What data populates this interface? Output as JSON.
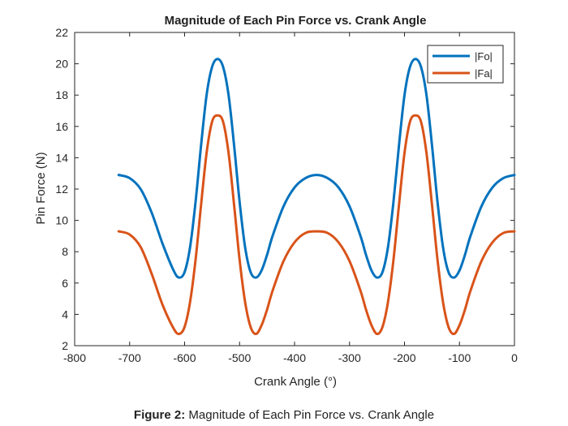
{
  "figure": {
    "caption_label": "Figure 2:",
    "caption_text": " Magnitude of Each Pin Force vs. Crank Angle"
  },
  "chart_data": {
    "type": "line",
    "title": "Magnitude of Each Pin Force vs. Crank Angle",
    "xlabel": "Crank Angle (°)",
    "ylabel": "Pin Force (N)",
    "xlim": [
      -800,
      0
    ],
    "ylim": [
      2,
      22
    ],
    "xticks": [
      -800,
      -700,
      -600,
      -500,
      -400,
      -300,
      -200,
      -100,
      0
    ],
    "yticks": [
      2,
      4,
      6,
      8,
      10,
      12,
      14,
      16,
      18,
      20,
      22
    ],
    "grid": false,
    "legend_position": "top-right",
    "series": [
      {
        "name": "|Fo|",
        "color": "#0072BD",
        "x": [
          -720,
          -700,
          -680,
          -660,
          -640,
          -620,
          -610,
          -600,
          -590,
          -580,
          -570,
          -560,
          -550,
          -540,
          -530,
          -520,
          -510,
          -500,
          -490,
          -480,
          -470,
          -460,
          -450,
          -440,
          -420,
          -400,
          -380,
          -360,
          -340,
          -320,
          -300,
          -280,
          -270,
          -260,
          -250,
          -240,
          -230,
          -220,
          -210,
          -200,
          -190,
          -180,
          -170,
          -160,
          -150,
          -140,
          -130,
          -120,
          -110,
          -100,
          -90,
          -80,
          -60,
          -40,
          -20,
          0
        ],
        "y": [
          12.9,
          12.7,
          12.0,
          10.5,
          8.5,
          6.8,
          6.35,
          6.7,
          8.3,
          11.2,
          14.8,
          18.0,
          19.8,
          20.3,
          19.8,
          18.0,
          14.8,
          11.2,
          8.3,
          6.7,
          6.35,
          6.8,
          7.8,
          9.0,
          10.9,
          12.1,
          12.7,
          12.9,
          12.7,
          12.1,
          10.9,
          9.0,
          7.8,
          6.8,
          6.35,
          6.7,
          8.3,
          11.2,
          14.8,
          18.0,
          19.8,
          20.3,
          19.8,
          18.0,
          14.8,
          11.2,
          8.3,
          6.7,
          6.35,
          6.8,
          7.8,
          9.0,
          10.9,
          12.1,
          12.7,
          12.9
        ]
      },
      {
        "name": "|Fa|",
        "color": "#D95319",
        "x": [
          -720,
          -700,
          -680,
          -660,
          -640,
          -620,
          -610,
          -600,
          -590,
          -580,
          -570,
          -560,
          -550,
          -540,
          -530,
          -520,
          -510,
          -500,
          -490,
          -480,
          -470,
          -460,
          -450,
          -440,
          -420,
          -400,
          -380,
          -360,
          -340,
          -320,
          -300,
          -280,
          -270,
          -260,
          -250,
          -240,
          -230,
          -220,
          -210,
          -200,
          -190,
          -180,
          -170,
          -160,
          -150,
          -140,
          -130,
          -120,
          -110,
          -100,
          -90,
          -80,
          -60,
          -40,
          -20,
          0
        ],
        "y": [
          9.3,
          9.1,
          8.3,
          6.6,
          4.6,
          3.1,
          2.75,
          3.2,
          4.8,
          7.5,
          11.0,
          14.3,
          16.3,
          16.7,
          16.3,
          14.3,
          11.0,
          7.5,
          4.8,
          3.2,
          2.75,
          3.3,
          4.3,
          5.5,
          7.4,
          8.6,
          9.2,
          9.3,
          9.2,
          8.6,
          7.4,
          5.5,
          4.3,
          3.3,
          2.75,
          3.2,
          4.8,
          7.5,
          11.0,
          14.3,
          16.3,
          16.7,
          16.3,
          14.3,
          11.0,
          7.5,
          4.8,
          3.2,
          2.75,
          3.3,
          4.3,
          5.5,
          7.4,
          8.6,
          9.2,
          9.3
        ]
      }
    ]
  }
}
